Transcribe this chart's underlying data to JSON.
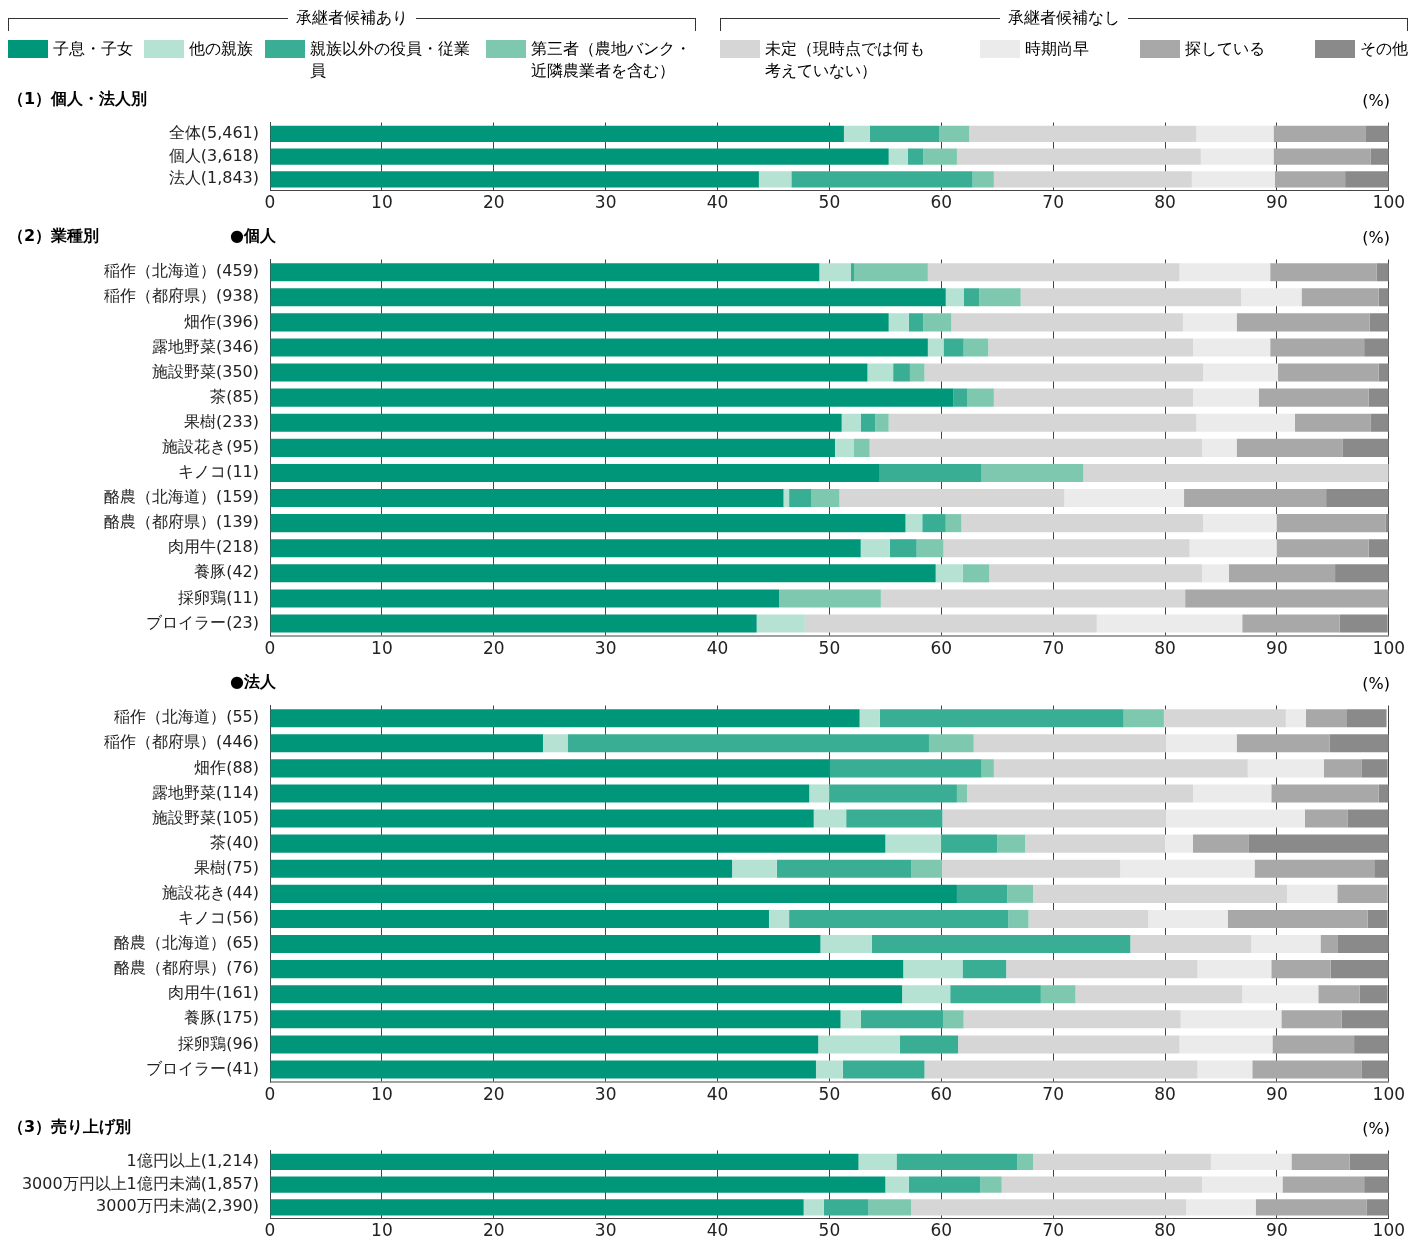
{
  "chart_data": [
    {
      "type": "bar",
      "orientation": "horizontal",
      "stacked": true,
      "title": "（1）個人・法人別",
      "xlabel": "(%)",
      "annotations": [
        "承継者候補あり",
        "承継者候補なし"
      ],
      "legend": "top",
      "grid": "x",
      "categories": [
        "全体(5,461)",
        "個人(3,618)",
        "法人(1,843)"
      ],
      "xlim": [
        0,
        100
      ],
      "xticks": [
        0,
        10,
        20,
        30,
        40,
        50,
        60,
        70,
        80,
        90,
        100
      ],
      "series": [
        {
          "name": "子息・子女",
          "color": "#00967a",
          "values": [
            51.3,
            55.3,
            43.7
          ]
        },
        {
          "name": "他の親族",
          "color": "#b5e2d3",
          "values": [
            2.3,
            1.7,
            2.9
          ]
        },
        {
          "name": "親族以外の役員・従業員",
          "color": "#3aae95",
          "values": [
            6.2,
            1.4,
            16.2
          ]
        },
        {
          "name": "第三者（農地バンク・近隣農業者を含む）",
          "color": "#7fc8b0",
          "values": [
            2.7,
            3.0,
            1.9
          ]
        },
        {
          "name": "未定（現時点では何も考えていない）",
          "color": "#d6d6d6",
          "values": [
            20.3,
            21.8,
            17.7
          ]
        },
        {
          "name": "時期尚早",
          "color": "#ebebeb",
          "values": [
            6.9,
            6.5,
            7.4
          ]
        },
        {
          "name": "探している",
          "color": "#a8a8a8",
          "values": [
            8.2,
            8.7,
            6.3
          ]
        },
        {
          "name": "その他",
          "color": "#8a8a8a",
          "values": [
            2.1,
            1.6,
            3.9
          ]
        }
      ]
    },
    {
      "type": "bar",
      "orientation": "horizontal",
      "stacked": true,
      "title": "（2）業種別",
      "subtitle": "●個人",
      "xlabel": "(%)",
      "grid": "x",
      "categories": [
        "稲作（北海道）(459)",
        "稲作（都府県）(938)",
        "畑作(396)",
        "露地野菜(346)",
        "施設野菜(350)",
        "茶(85)",
        "果樹(233)",
        "施設花き(95)",
        "キノコ(11)",
        "酪農（北海道）(159)",
        "酪農（都府県）(139)",
        "肉用牛(218)",
        "養豚(42)",
        "採卵鶏(11)",
        "ブロイラー(23)"
      ],
      "xlim": [
        0,
        100
      ],
      "xticks": [
        0,
        10,
        20,
        30,
        40,
        50,
        60,
        70,
        80,
        90,
        100
      ],
      "series": [
        {
          "color": "#00967a",
          "values": [
            49.1,
            60.4,
            55.3,
            58.8,
            53.4,
            61.1,
            51.1,
            50.5,
            54.5,
            45.9,
            56.8,
            52.8,
            59.5,
            45.5,
            43.5
          ]
        },
        {
          "color": "#b5e2d3",
          "values": [
            2.8,
            1.6,
            1.8,
            1.4,
            2.3,
            0,
            1.7,
            1.7,
            0,
            0.5,
            1.5,
            2.6,
            2.4,
            0,
            4.3
          ]
        },
        {
          "color": "#3aae95",
          "values": [
            0.3,
            1.4,
            1.3,
            1.8,
            1.5,
            1.2,
            1.3,
            0,
            9.1,
            2.0,
            2.1,
            2.4,
            0,
            0,
            0
          ]
        },
        {
          "color": "#7fc8b0",
          "values": [
            6.6,
            3.7,
            2.5,
            2.2,
            1.3,
            2.4,
            1.2,
            1.4,
            9.1,
            2.5,
            1.4,
            2.4,
            2.4,
            9.1,
            0
          ]
        },
        {
          "color": "#d6d6d6",
          "values": [
            22.5,
            19.7,
            20.7,
            18.3,
            24.9,
            17.8,
            27.5,
            29.7,
            27.3,
            20.1,
            21.6,
            22.0,
            19.0,
            27.2,
            26.1
          ]
        },
        {
          "color": "#ebebeb",
          "values": [
            8.1,
            5.4,
            4.8,
            6.9,
            6.7,
            5.9,
            8.8,
            3.1,
            0,
            10.7,
            6.6,
            7.8,
            2.4,
            0,
            13.0
          ]
        },
        {
          "color": "#a8a8a8",
          "values": [
            9.5,
            6.9,
            11.9,
            8.4,
            9.0,
            9.8,
            6.8,
            9.5,
            0,
            12.7,
            9.7,
            8.2,
            9.5,
            18.2,
            8.7
          ]
        },
        {
          "color": "#8a8a8a",
          "values": [
            1.1,
            0.9,
            1.7,
            2.2,
            0.9,
            1.8,
            1.6,
            4.1,
            0,
            5.6,
            0.3,
            1.8,
            4.8,
            0,
            4.3
          ]
        }
      ]
    },
    {
      "type": "bar",
      "orientation": "horizontal",
      "stacked": true,
      "subtitle": "●法人",
      "xlabel": "(%)",
      "grid": "x",
      "categories": [
        "稲作（北海道）(55)",
        "稲作（都府県）(446)",
        "畑作(88)",
        "露地野菜(114)",
        "施設野菜(105)",
        "茶(40)",
        "果樹(75)",
        "施設花き(44)",
        "キノコ(56)",
        "酪農（北海道）(65)",
        "酪農（都府県）(76)",
        "肉用牛(161)",
        "養豚(175)",
        "採卵鶏(96)",
        "ブロイラー(41)"
      ],
      "xlim": [
        0,
        100
      ],
      "xticks": [
        0,
        10,
        20,
        30,
        40,
        50,
        60,
        70,
        80,
        90,
        100
      ],
      "series": [
        {
          "color": "#00967a",
          "values": [
            52.7,
            24.4,
            50.0,
            48.2,
            48.6,
            55,
            41.3,
            61.4,
            44.6,
            49.2,
            56.6,
            56.5,
            51.0,
            49.0,
            48.8
          ]
        },
        {
          "color": "#b5e2d3",
          "values": [
            1.8,
            2.2,
            0,
            1.8,
            2.9,
            5,
            4.0,
            0,
            1.8,
            4.6,
            5.3,
            4.3,
            1.8,
            7.3,
            2.4
          ]
        },
        {
          "color": "#3aae95",
          "values": [
            21.8,
            32.3,
            13.6,
            11.4,
            8.6,
            5,
            12.0,
            4.5,
            19.6,
            23.1,
            3.9,
            8.1,
            7.4,
            5.2,
            7.3
          ]
        },
        {
          "color": "#7fc8b0",
          "values": [
            3.6,
            4.0,
            1.1,
            0.9,
            0,
            2.5,
            2.7,
            2.3,
            1.8,
            0,
            0,
            3.1,
            1.8,
            0,
            0
          ]
        },
        {
          "color": "#d6d6d6",
          "values": [
            10.9,
            17.2,
            22.7,
            20.2,
            20.0,
            12.5,
            16.0,
            22.7,
            10.7,
            10.8,
            17.1,
            14.9,
            19.4,
            19.8,
            24.4
          ]
        },
        {
          "color": "#ebebeb",
          "values": [
            1.8,
            6.3,
            6.8,
            7.0,
            12.4,
            2.5,
            12.0,
            4.5,
            7.1,
            6.2,
            6.6,
            6.8,
            9.0,
            8.3,
            4.9
          ]
        },
        {
          "color": "#a8a8a8",
          "values": [
            3.6,
            8.3,
            3.4,
            9.6,
            3.8,
            5,
            10.7,
            4.5,
            12.5,
            1.5,
            5.3,
            3.7,
            5.4,
            7.3,
            9.8
          ]
        },
        {
          "color": "#8a8a8a",
          "values": [
            3.6,
            5.3,
            2.3,
            0.9,
            3.7,
            12.5,
            1.3,
            0,
            1.8,
            4.6,
            5.2,
            2.5,
            4.2,
            3.1,
            2.4
          ]
        }
      ]
    },
    {
      "type": "bar",
      "orientation": "horizontal",
      "stacked": true,
      "title": "（3）売り上げ別",
      "xlabel": "(%)",
      "grid": "x",
      "categories": [
        "1億円以上(1,214)",
        "3000万円以上1億円未満(1,857)",
        "3000万円未満(2,390)"
      ],
      "xlim": [
        0,
        100
      ],
      "xticks": [
        0,
        10,
        20,
        30,
        40,
        50,
        60,
        70,
        80,
        90,
        100
      ],
      "series": [
        {
          "color": "#00967a",
          "values": [
            52.6,
            55.0,
            47.7
          ]
        },
        {
          "color": "#b5e2d3",
          "values": [
            3.4,
            2.1,
            1.8
          ]
        },
        {
          "color": "#3aae95",
          "values": [
            10.8,
            6.4,
            4.0
          ]
        },
        {
          "color": "#7fc8b0",
          "values": [
            1.4,
            1.9,
            3.8
          ]
        },
        {
          "color": "#d6d6d6",
          "values": [
            15.9,
            17.9,
            24.6
          ]
        },
        {
          "color": "#ebebeb",
          "values": [
            7.2,
            7.2,
            6.2
          ]
        },
        {
          "color": "#a8a8a8",
          "values": [
            5.2,
            7.3,
            9.9
          ]
        },
        {
          "color": "#8a8a8a",
          "values": [
            3.5,
            2.2,
            2.0
          ]
        }
      ]
    }
  ]
}
